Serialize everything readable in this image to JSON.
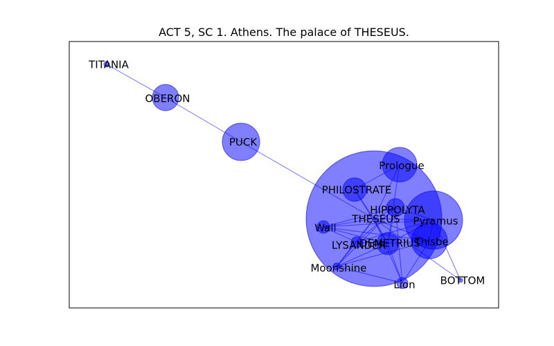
{
  "title": "ACT 5, SC 1. Athens. The palace of THESEUS.",
  "colors": {
    "node": "#0000ff",
    "edge": "#0000ff",
    "frame": "#000000"
  },
  "nodes": [
    {
      "id": "TITANIA",
      "label": "TITANIA",
      "weight": 1
    },
    {
      "id": "OBERON",
      "label": "OBERON",
      "weight": 6
    },
    {
      "id": "PUCK",
      "label": "PUCK",
      "weight": 12
    },
    {
      "id": "Prologue",
      "label": "Prologue",
      "weight": 11
    },
    {
      "id": "PHILOSTRATE",
      "label": "PHILOSTRATE",
      "weight": 5
    },
    {
      "id": "HIPPOLYTA",
      "label": "HIPPOLYTA",
      "weight": 3
    },
    {
      "id": "THESEUS",
      "label": "THESEUS",
      "weight": 100
    },
    {
      "id": "Pyramus",
      "label": "Pyramus",
      "weight": 30
    },
    {
      "id": "Wall",
      "label": "Wall",
      "weight": 1.5
    },
    {
      "id": "Thisbe",
      "label": "Thisbe",
      "weight": 11
    },
    {
      "id": "LYSANDER",
      "label": "LYSANDER",
      "weight": 1.5
    },
    {
      "id": "DEMETRIUS",
      "label": "DEMETRIUS",
      "weight": 4
    },
    {
      "id": "Moonshine",
      "label": "Moonshine",
      "weight": 1
    },
    {
      "id": "Lion",
      "label": "Lion",
      "weight": 1.5
    },
    {
      "id": "BOTTOM",
      "label": "BOTTOM",
      "weight": 0.5
    }
  ],
  "edges": [
    [
      "TITANIA",
      "OBERON"
    ],
    [
      "OBERON",
      "PUCK"
    ],
    [
      "PUCK",
      "THESEUS"
    ],
    [
      "THESEUS",
      "Prologue"
    ],
    [
      "THESEUS",
      "PHILOSTRATE"
    ],
    [
      "THESEUS",
      "HIPPOLYTA"
    ],
    [
      "THESEUS",
      "Pyramus"
    ],
    [
      "THESEUS",
      "Wall"
    ],
    [
      "THESEUS",
      "Thisbe"
    ],
    [
      "THESEUS",
      "LYSANDER"
    ],
    [
      "THESEUS",
      "DEMETRIUS"
    ],
    [
      "THESEUS",
      "Moonshine"
    ],
    [
      "THESEUS",
      "Lion"
    ],
    [
      "THESEUS",
      "BOTTOM"
    ],
    [
      "DEMETRIUS",
      "Wall"
    ],
    [
      "DEMETRIUS",
      "Moonshine"
    ],
    [
      "DEMETRIUS",
      "Lion"
    ],
    [
      "DEMETRIUS",
      "Pyramus"
    ],
    [
      "DEMETRIUS",
      "Thisbe"
    ],
    [
      "DEMETRIUS",
      "HIPPOLYTA"
    ],
    [
      "DEMETRIUS",
      "LYSANDER"
    ],
    [
      "DEMETRIUS",
      "Prologue"
    ],
    [
      "DEMETRIUS",
      "PHILOSTRATE"
    ],
    [
      "HIPPOLYTA",
      "Pyramus"
    ],
    [
      "HIPPOLYTA",
      "Wall"
    ],
    [
      "HIPPOLYTA",
      "Moonshine"
    ],
    [
      "HIPPOLYTA",
      "Lion"
    ],
    [
      "HIPPOLYTA",
      "LYSANDER"
    ],
    [
      "Pyramus",
      "Thisbe"
    ],
    [
      "Pyramus",
      "Wall"
    ],
    [
      "Pyramus",
      "LYSANDER"
    ],
    [
      "Pyramus",
      "BOTTOM"
    ],
    [
      "Thisbe",
      "Wall"
    ],
    [
      "Thisbe",
      "Moonshine"
    ],
    [
      "Thisbe",
      "Lion"
    ],
    [
      "LYSANDER",
      "Wall"
    ],
    [
      "LYSANDER",
      "Moonshine"
    ],
    [
      "Lion",
      "Moonshine"
    ],
    [
      "Prologue",
      "PHILOSTRATE"
    ]
  ]
}
